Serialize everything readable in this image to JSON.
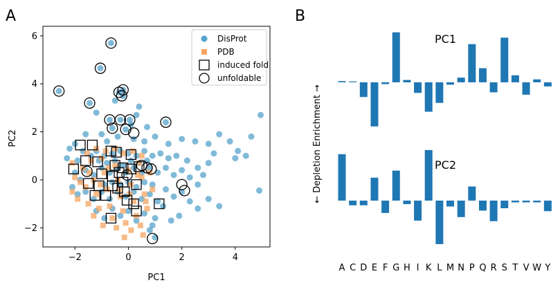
{
  "panel_a_letter": "A",
  "panel_b_letter": "B",
  "chart_data": [
    {
      "type": "scatter",
      "xlabel": "PC1",
      "ylabel": "PC2",
      "xlim": [
        -3.2,
        5.3
      ],
      "ylim": [
        -2.8,
        6.4
      ],
      "xticks": [
        -2,
        0,
        2,
        4
      ],
      "yticks": [
        -2,
        0,
        2,
        4,
        6
      ],
      "legend_position": "top-right",
      "legend": [
        {
          "label": "DisProt",
          "marker": "circle-filled",
          "color": "#2b8cbe"
        },
        {
          "label": "PDB",
          "marker": "square-filled",
          "color": "#f4a460"
        },
        {
          "label": "induced fold",
          "marker": "square-open",
          "color": "#000000"
        },
        {
          "label": "unfoldable",
          "marker": "circle-open",
          "color": "#000000"
        }
      ],
      "series": [
        {
          "name": "DisProt",
          "color": "#2b8cbe",
          "points": [
            [
              -2.6,
              3.7
            ],
            [
              -0.65,
              5.7
            ],
            [
              -1.05,
              4.65
            ],
            [
              -0.35,
              3.65
            ],
            [
              -0.2,
              3.75
            ],
            [
              -1.45,
              3.2
            ],
            [
              -0.7,
              2.5
            ],
            [
              -0.3,
              2.5
            ],
            [
              0.05,
              2.5
            ],
            [
              1.4,
              2.4
            ],
            [
              -0.6,
              2.15
            ],
            [
              -0.1,
              2.1
            ],
            [
              0.1,
              2.3
            ],
            [
              -0.5,
              3.3
            ],
            [
              0.4,
              3.05
            ],
            [
              -0.2,
              3.5
            ],
            [
              -1.2,
              2.8
            ],
            [
              0.3,
              2.7
            ],
            [
              0.7,
              2.2
            ],
            [
              -2.0,
              1.5
            ],
            [
              -1.6,
              1.9
            ],
            [
              -1.0,
              1.9
            ],
            [
              -0.8,
              1.6
            ],
            [
              -0.4,
              1.8
            ],
            [
              0.2,
              1.7
            ],
            [
              0.6,
              1.6
            ],
            [
              1.0,
              1.8
            ],
            [
              1.5,
              1.5
            ],
            [
              2.0,
              1.7
            ],
            [
              2.5,
              1.6
            ],
            [
              3.0,
              1.5
            ],
            [
              3.4,
              1.9
            ],
            [
              3.8,
              1.6
            ],
            [
              4.1,
              1.2
            ],
            [
              4.4,
              1.0
            ],
            [
              4.6,
              1.8
            ],
            [
              4.95,
              2.7
            ],
            [
              4.0,
              0.9
            ],
            [
              3.0,
              0.7
            ],
            [
              2.6,
              0.5
            ],
            [
              2.2,
              0.8
            ],
            [
              2.8,
              0.2
            ],
            [
              3.2,
              1.1
            ],
            [
              -2.2,
              1.3
            ],
            [
              -2.3,
              0.9
            ],
            [
              -1.9,
              0.8
            ],
            [
              -1.7,
              1.2
            ],
            [
              -1.4,
              1.0
            ],
            [
              -1.2,
              1.2
            ],
            [
              -0.9,
              1.0
            ],
            [
              -0.6,
              1.1
            ],
            [
              -0.3,
              1.2
            ],
            [
              0.0,
              1.1
            ],
            [
              0.3,
              1.0
            ],
            [
              0.6,
              1.2
            ],
            [
              0.9,
              1.0
            ],
            [
              1.2,
              1.1
            ],
            [
              1.5,
              0.9
            ],
            [
              1.8,
              1.0
            ],
            [
              -2.0,
              0.3
            ],
            [
              -1.8,
              0.0
            ],
            [
              -1.6,
              0.4
            ],
            [
              -1.3,
              0.2
            ],
            [
              -1.0,
              0.5
            ],
            [
              -0.7,
              0.3
            ],
            [
              -0.4,
              0.5
            ],
            [
              -0.1,
              0.3
            ],
            [
              0.2,
              0.5
            ],
            [
              0.5,
              0.3
            ],
            [
              0.8,
              0.5
            ],
            [
              1.1,
              0.3
            ],
            [
              1.4,
              0.5
            ],
            [
              1.7,
              0.2
            ],
            [
              2.0,
              0.4
            ],
            [
              2.3,
              0.1
            ],
            [
              2.6,
              -0.2
            ],
            [
              -2.1,
              -0.3
            ],
            [
              -1.9,
              -0.6
            ],
            [
              -1.6,
              -0.5
            ],
            [
              -1.3,
              -0.8
            ],
            [
              -1.0,
              -0.5
            ],
            [
              -0.7,
              -0.8
            ],
            [
              -0.4,
              -0.5
            ],
            [
              -0.1,
              -0.7
            ],
            [
              0.2,
              -0.5
            ],
            [
              0.5,
              -0.8
            ],
            [
              0.8,
              -0.6
            ],
            [
              1.1,
              -0.9
            ],
            [
              1.4,
              -0.4
            ],
            [
              1.7,
              -0.7
            ],
            [
              2.0,
              -0.5
            ],
            [
              2.3,
              -0.9
            ],
            [
              2.6,
              -1.2
            ],
            [
              3.0,
              -0.8
            ],
            [
              3.4,
              -1.1
            ],
            [
              4.9,
              -0.45
            ],
            [
              -1.2,
              -1.3
            ],
            [
              -0.9,
              -1.6
            ],
            [
              -0.6,
              -1.2
            ],
            [
              -0.3,
              -1.5
            ],
            [
              0.0,
              -1.3
            ],
            [
              0.3,
              -1.7
            ],
            [
              0.6,
              -1.4
            ],
            [
              1.0,
              -1.6
            ],
            [
              1.3,
              -1.1
            ],
            [
              0.8,
              -2.1
            ],
            [
              1.0,
              -2.4
            ],
            [
              0.9,
              -1.9
            ],
            [
              1.6,
              -1.7
            ],
            [
              1.9,
              -1.5
            ],
            [
              -0.5,
              0.8
            ],
            [
              -0.2,
              0.6
            ],
            [
              0.1,
              0.8
            ],
            [
              0.4,
              0.7
            ],
            [
              0.7,
              0.8
            ],
            [
              -0.8,
              0.7
            ],
            [
              -1.1,
              0.8
            ],
            [
              -0.3,
              -0.2
            ],
            [
              0.0,
              -0.1
            ],
            [
              0.3,
              -0.3
            ],
            [
              0.6,
              -0.1
            ],
            [
              0.9,
              -0.2
            ],
            [
              -0.6,
              -0.1
            ],
            [
              -0.9,
              -0.2
            ]
          ]
        },
        {
          "name": "PDB",
          "color": "#f4a460",
          "points": [
            [
              -2.1,
              0.7
            ],
            [
              -2.0,
              0.1
            ],
            [
              -2.1,
              -0.5
            ],
            [
              -1.9,
              -0.8
            ],
            [
              -1.7,
              0.5
            ],
            [
              -1.6,
              -0.3
            ],
            [
              -1.5,
              -1.0
            ],
            [
              -1.4,
              0.8
            ],
            [
              -1.3,
              0.0
            ],
            [
              -1.2,
              -0.6
            ],
            [
              -1.1,
              -1.2
            ],
            [
              -1.0,
              0.9
            ],
            [
              -0.9,
              0.3
            ],
            [
              -0.8,
              -0.4
            ],
            [
              -0.7,
              -1.1
            ],
            [
              -0.6,
              -1.6
            ],
            [
              -0.5,
              0.6
            ],
            [
              -0.4,
              0.0
            ],
            [
              -0.3,
              -0.7
            ],
            [
              -0.2,
              -1.3
            ],
            [
              -0.1,
              -1.8
            ],
            [
              0.0,
              0.4
            ],
            [
              0.1,
              -0.2
            ],
            [
              0.2,
              -0.9
            ],
            [
              0.3,
              -1.5
            ],
            [
              0.4,
              0.7
            ],
            [
              0.5,
              0.1
            ],
            [
              0.6,
              -0.6
            ],
            [
              0.7,
              -1.2
            ],
            [
              0.8,
              0.3
            ],
            [
              0.9,
              -0.4
            ],
            [
              -1.55,
              1.1
            ],
            [
              -1.2,
              1.3
            ],
            [
              -0.85,
              1.2
            ],
            [
              -0.5,
              1.3
            ],
            [
              -0.2,
              1.1
            ],
            [
              0.15,
              1.2
            ],
            [
              0.5,
              1.0
            ],
            [
              -1.8,
              -0.1
            ],
            [
              -1.45,
              0.3
            ],
            [
              -1.05,
              -0.2
            ],
            [
              -0.75,
              0.5
            ],
            [
              -0.35,
              -0.4
            ],
            [
              0.05,
              -0.6
            ],
            [
              0.35,
              0.2
            ],
            [
              0.65,
              -0.9
            ],
            [
              -1.3,
              -1.5
            ],
            [
              -0.95,
              -1.9
            ],
            [
              -0.45,
              -2.0
            ],
            [
              0.1,
              -2.1
            ],
            [
              0.45,
              -1.9
            ],
            [
              0.55,
              -2.3
            ],
            [
              -0.15,
              -2.4
            ]
          ]
        },
        {
          "name": "induced fold",
          "color": "#000000",
          "points": [
            [
              -1.8,
              1.45
            ],
            [
              -1.35,
              1.45
            ],
            [
              -0.65,
              1.2
            ],
            [
              -0.45,
              1.15
            ],
            [
              0.1,
              1.05
            ],
            [
              -2.05,
              0.45
            ],
            [
              -1.6,
              0.8
            ],
            [
              -1.15,
              0.75
            ],
            [
              -0.5,
              0.6
            ],
            [
              -0.2,
              0.5
            ],
            [
              0.1,
              0.45
            ],
            [
              0.4,
              0.55
            ],
            [
              -1.0,
              0.25
            ],
            [
              -0.6,
              0.15
            ],
            [
              -0.35,
              0.3
            ],
            [
              -0.6,
              -0.25
            ],
            [
              -1.5,
              -0.15
            ],
            [
              -1.1,
              -0.25
            ],
            [
              -0.2,
              -0.1
            ],
            [
              0.3,
              -0.2
            ],
            [
              -0.15,
              -0.5
            ],
            [
              -1.25,
              -0.65
            ],
            [
              -0.85,
              -0.65
            ],
            [
              -0.05,
              -0.85
            ],
            [
              0.2,
              -1.0
            ],
            [
              0.3,
              -1.3
            ],
            [
              1.15,
              -1.0
            ],
            [
              -0.65,
              -1.6
            ],
            [
              -0.4,
              -0.35
            ]
          ]
        },
        {
          "name": "unfoldable",
          "color": "#000000",
          "points": [
            [
              -2.6,
              3.7
            ],
            [
              -0.65,
              5.7
            ],
            [
              -1.05,
              4.65
            ],
            [
              -0.35,
              3.65
            ],
            [
              -0.2,
              3.75
            ],
            [
              -0.25,
              3.5
            ],
            [
              -1.45,
              3.2
            ],
            [
              -0.7,
              2.5
            ],
            [
              -0.3,
              2.5
            ],
            [
              0.05,
              2.5
            ],
            [
              1.4,
              2.4
            ],
            [
              -0.6,
              2.15
            ],
            [
              -0.1,
              2.1
            ],
            [
              0.2,
              1.95
            ],
            [
              0.5,
              0.6
            ],
            [
              0.7,
              0.5
            ],
            [
              0.85,
              0.45
            ],
            [
              2.0,
              -0.2
            ],
            [
              2.1,
              -0.45
            ],
            [
              0.9,
              -2.45
            ],
            [
              -1.55,
              0.35
            ],
            [
              -0.05,
              0.2
            ]
          ]
        }
      ]
    },
    {
      "type": "bar",
      "ylabel": "← Depletion     Enrichment →",
      "categories": [
        "A",
        "C",
        "D",
        "E",
        "F",
        "G",
        "H",
        "I",
        "K",
        "L",
        "M",
        "N",
        "P",
        "Q",
        "R",
        "S",
        "T",
        "V",
        "W",
        "Y"
      ],
      "series": [
        {
          "name": "PC1",
          "color": "#1f77b4",
          "values": [
            0.02,
            0.01,
            -0.25,
            -0.75,
            -0.03,
            0.85,
            0.04,
            -0.18,
            -0.5,
            -0.35,
            -0.04,
            0.08,
            0.65,
            0.24,
            -0.17,
            0.76,
            0.12,
            -0.21,
            0.05,
            -0.07
          ]
        },
        {
          "name": "PC2",
          "color": "#1f77b4",
          "values": [
            0.79,
            -0.08,
            -0.08,
            0.39,
            -0.21,
            0.51,
            -0.06,
            -0.34,
            0.86,
            -0.74,
            -0.1,
            -0.28,
            0.24,
            -0.17,
            -0.35,
            -0.13,
            -0.03,
            -0.03,
            -0.03,
            -0.18
          ]
        }
      ]
    }
  ]
}
